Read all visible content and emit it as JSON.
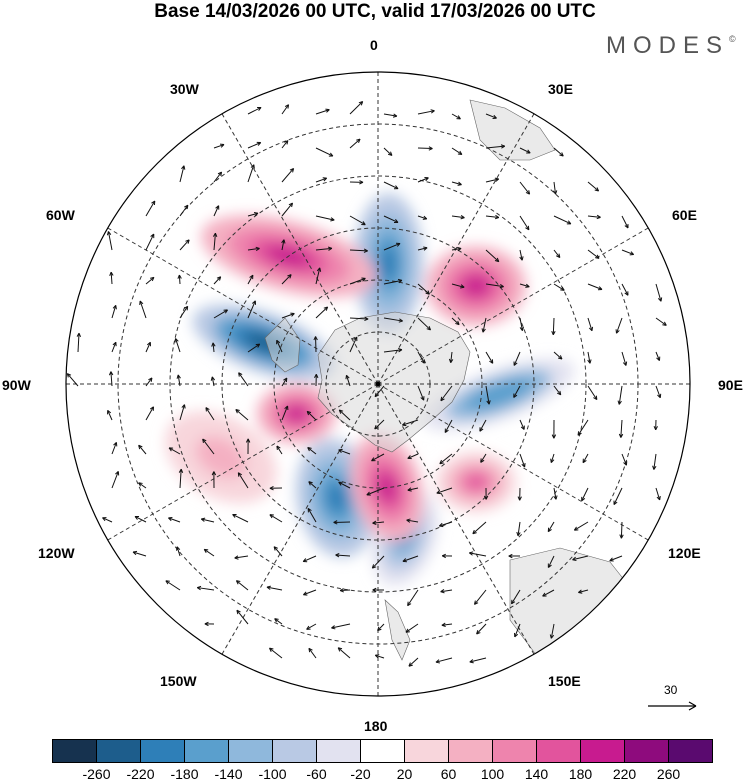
{
  "title": "Base 14/03/2026 00 UTC, valid 17/03/2026 00 UTC",
  "brand": {
    "name": "MODES",
    "mark": "©"
  },
  "longitude_labels": {
    "lon_0": "0",
    "lon_30e": "30E",
    "lon_60e": "60E",
    "lon_90e": "90E",
    "lon_120e": "120E",
    "lon_150e": "150E",
    "lon_180": "180",
    "lon_150w": "150W",
    "lon_120w": "120W",
    "lon_90w": "90W",
    "lon_60w": "60W",
    "lon_30w": "30W"
  },
  "reference_vector": {
    "label": "30"
  },
  "colorbar": {
    "colors": [
      "#16324f",
      "#1d5d8c",
      "#2e7fb8",
      "#5a9fcd",
      "#8fb8dc",
      "#b9c9e4",
      "#e2e2f0",
      "#ffffff",
      "#f8d6dc",
      "#f4b0c2",
      "#ee84ad",
      "#e2549d",
      "#c81b8f",
      "#8e0b7d",
      "#5a0a6f"
    ],
    "ticks": [
      "-260",
      "-220",
      "-180",
      "-140",
      "-100",
      "-60",
      "-20",
      "20",
      "60",
      "100",
      "140",
      "180",
      "220",
      "260"
    ]
  },
  "anomalies": [
    {
      "name": "low-60w-90w",
      "value": -260,
      "lat": -55,
      "lon": -70,
      "rx": 75,
      "ry": 30,
      "rot": 20
    },
    {
      "name": "low-0",
      "value": -220,
      "lat": -55,
      "lon": 5,
      "rx": 35,
      "ry": 70,
      "rot": 0
    },
    {
      "name": "low-90e",
      "value": -180,
      "lat": -55,
      "lon": 95,
      "rx": 80,
      "ry": 25,
      "rot": -20
    },
    {
      "name": "low-160w",
      "value": -200,
      "lat": -55,
      "lon": -160,
      "rx": 40,
      "ry": 60,
      "rot": -10
    },
    {
      "name": "low-170e",
      "value": -160,
      "lat": -45,
      "lon": 170,
      "rx": 30,
      "ry": 50,
      "rot": 20
    },
    {
      "name": "high-30w",
      "value": 220,
      "lat": -45,
      "lon": -35,
      "rx": 90,
      "ry": 35,
      "rot": 15
    },
    {
      "name": "high-45e",
      "value": 220,
      "lat": -50,
      "lon": 45,
      "rx": 50,
      "ry": 40,
      "rot": 0
    },
    {
      "name": "high-110w",
      "value": 220,
      "lat": -65,
      "lon": -110,
      "rx": 40,
      "ry": 30,
      "rot": 0
    },
    {
      "name": "high-170w",
      "value": 220,
      "lat": -60,
      "lon": 175,
      "rx": 35,
      "ry": 55,
      "rot": -15
    },
    {
      "name": "high-120e",
      "value": 160,
      "lat": -50,
      "lon": 135,
      "rx": 40,
      "ry": 30,
      "rot": 0
    },
    {
      "name": "high-120w",
      "value": 100,
      "lat": -40,
      "lon": -115,
      "rx": 60,
      "ry": 40,
      "rot": 30
    }
  ]
}
